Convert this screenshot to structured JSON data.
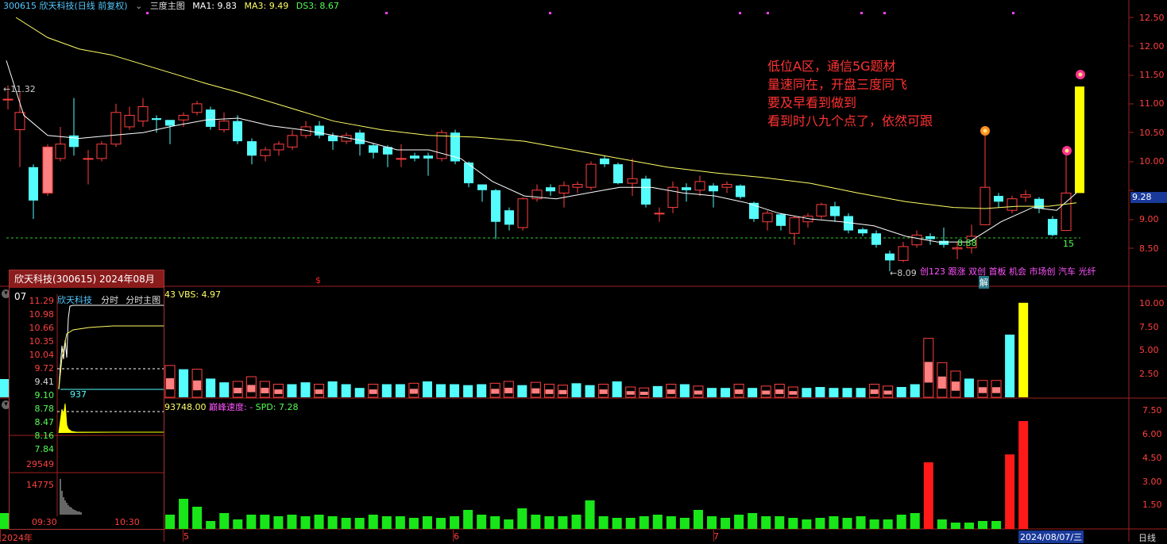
{
  "legend": {
    "code_title": "300615 欣天科技(日线 前复权)",
    "chevron": "⌄",
    "main_chart_name": "三度主图",
    "ma1": "MA1: 9.83",
    "ma3": "MA3: 9.49",
    "ds3": "DS3: 8.67"
  },
  "annotations": {
    "note_lines": [
      "低位A区，通信5G题材",
      "量速同在，开盘三度同飞",
      "要及早看到做到",
      "看到时八九个点了，依然可跟"
    ],
    "high_label": "11.32",
    "low_label": "8.09",
    "support_label": "8.88",
    "count_label": "15",
    "concept_tags": "创123 跟涨 双创 首板 机会 市场创 汽车 光纤",
    "jie_badge": "解",
    "dollar_mark": "$"
  },
  "price_axis": {
    "ticks": [
      "12.50",
      "12.00",
      "11.50",
      "11.00",
      "10.50",
      "10.00",
      "9.50",
      "9.00",
      "8.50"
    ],
    "current_price": "9.28",
    "colors": {
      "up": "#ff4040",
      "down": "#54fcfc",
      "yellow": "#ffff00",
      "ma_white": "#ffffff",
      "ma_yellow": "#ffff66"
    }
  },
  "volume_panel": {
    "legend": "43 VBS: 4.97",
    "ticks": [
      "10.00",
      "7.50",
      "5.00",
      "2.50"
    ]
  },
  "speed_panel": {
    "legend_num": "93748.00",
    "legend_name": "巅峰速度: -",
    "legend_spd": "SPD: 7.28",
    "ticks": [
      "7.50",
      "6.00",
      "4.50",
      "3.00",
      "1.50"
    ]
  },
  "date_axis": {
    "year": "2024年",
    "months": [
      "5",
      "6",
      "7"
    ],
    "current_date": "2024/08/07/三",
    "period": "日线"
  },
  "mini_panel": {
    "title": "欣天科技(300615) 2024年08月07",
    "tabs": [
      "欣天科技",
      "分时",
      "分时主图"
    ],
    "price_ticks": [
      "11.29",
      "10.98",
      "10.66",
      "10.35",
      "10.04",
      "9.72",
      "9.41",
      "9.10",
      "8.78",
      "8.47",
      "8.16",
      "7.84"
    ],
    "volume_ticks": [
      "29549",
      "14775"
    ],
    "time_ticks": [
      "09:30",
      "10:30"
    ],
    "avg_label": "937"
  }
}
